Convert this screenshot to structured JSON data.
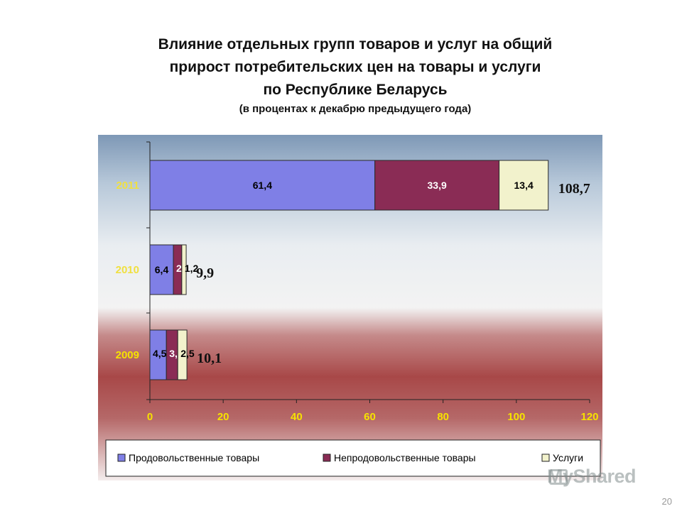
{
  "title": {
    "line1": "Влияние отдельных групп товаров и услуг на общий",
    "line2": "прирост потребительских цен на товары и услуги",
    "line3": "по Республике Беларусь"
  },
  "subtitle": "(в процентах к декабрю предыдущего года)",
  "page_number": "20",
  "watermark": "MyShared",
  "colors": {
    "food": "#7f7fe6",
    "nonfood": "#8a2c55",
    "services": "#f2f2cc",
    "year_label": "#f0e040",
    "year_label_2009": "#f6e200"
  },
  "chart_data": {
    "type": "bar",
    "orientation": "horizontal",
    "stacked": true,
    "categories": [
      "2011",
      "2010",
      "2009"
    ],
    "series": [
      {
        "name": "Продовольственные товары",
        "values": [
          61.4,
          6.4,
          4.5
        ],
        "labels": [
          "61,4",
          "6,4",
          "4,5"
        ]
      },
      {
        "name": "Непродовольственные товары",
        "values": [
          33.9,
          2.3,
          3.1
        ],
        "labels": [
          "33,9",
          "2,3",
          "3,1"
        ]
      },
      {
        "name": "Услуги",
        "values": [
          13.4,
          1.2,
          2.5
        ],
        "labels": [
          "13,4",
          "1,2",
          "2,5"
        ]
      }
    ],
    "totals": [
      "108,7",
      "9,9",
      "10,1"
    ],
    "xlim": [
      0,
      120
    ],
    "xticks": [
      "0",
      "20",
      "40",
      "60",
      "80",
      "100",
      "120"
    ],
    "grid": false,
    "legend": "bottom"
  }
}
